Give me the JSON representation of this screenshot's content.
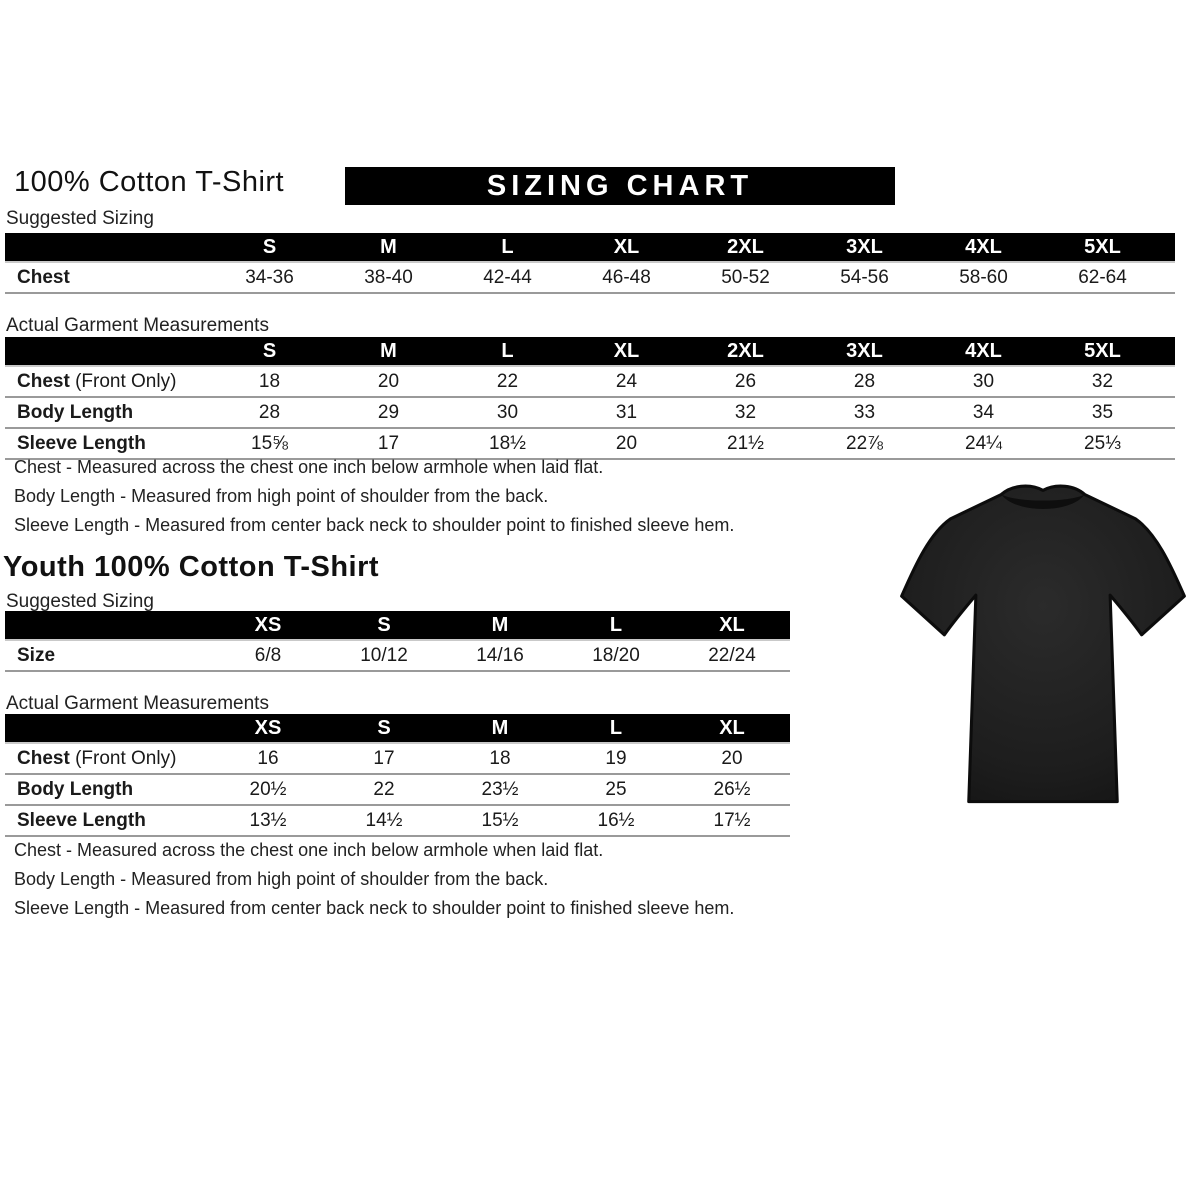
{
  "page": {
    "background": "#ffffff",
    "bar_color": "#000000",
    "line_color": "#9a9a9a"
  },
  "adult": {
    "title": "100% Cotton T-Shirt",
    "banner": "SIZING CHART",
    "suggested": {
      "label": "Suggested Sizing",
      "columns": [
        "S",
        "M",
        "L",
        "XL",
        "2XL",
        "3XL",
        "4XL",
        "5XL"
      ],
      "rows": [
        {
          "label": "Chest",
          "suffix": "",
          "values": [
            "34-36",
            "38-40",
            "42-44",
            "46-48",
            "50-52",
            "54-56",
            "58-60",
            "62-64"
          ]
        }
      ]
    },
    "actual": {
      "label": "Actual Garment Measurements",
      "columns": [
        "S",
        "M",
        "L",
        "XL",
        "2XL",
        "3XL",
        "4XL",
        "5XL"
      ],
      "rows": [
        {
          "label": "Chest",
          "suffix": "(Front Only)",
          "values": [
            "18",
            "20",
            "22",
            "24",
            "26",
            "28",
            "30",
            "32"
          ]
        },
        {
          "label": "Body Length",
          "suffix": "",
          "values": [
            "28",
            "29",
            "30",
            "31",
            "32",
            "33",
            "34",
            "35"
          ]
        },
        {
          "label": "Sleeve Length",
          "suffix": "",
          "values": [
            "15⅝",
            "17",
            "18½",
            "20",
            "21½",
            "22⅞",
            "24¼",
            "25⅓"
          ]
        }
      ]
    },
    "notes": [
      "Chest - Measured across the chest one inch below armhole when laid flat.",
      "Body Length - Measured from high point of shoulder from the back.",
      "Sleeve Length - Measured from center back neck to shoulder point to finished sleeve hem."
    ]
  },
  "youth": {
    "title": "Youth 100% Cotton T-Shirt",
    "suggested": {
      "label": "Suggested Sizing",
      "columns": [
        "XS",
        "S",
        "M",
        "L",
        "XL"
      ],
      "rows": [
        {
          "label": "Size",
          "suffix": "",
          "values": [
            "6/8",
            "10/12",
            "14/16",
            "18/20",
            "22/24"
          ]
        }
      ]
    },
    "actual": {
      "label": "Actual Garment Measurements",
      "columns": [
        "XS",
        "S",
        "M",
        "L",
        "XL"
      ],
      "rows": [
        {
          "label": "Chest",
          "suffix": "(Front Only)",
          "values": [
            "16",
            "17",
            "18",
            "19",
            "20"
          ]
        },
        {
          "label": "Body Length",
          "suffix": "",
          "values": [
            "20½",
            "22",
            "23½",
            "25",
            "26½"
          ]
        },
        {
          "label": "Sleeve Length",
          "suffix": "",
          "values": [
            "13½",
            "14½",
            "15½",
            "16½",
            "17½"
          ]
        }
      ]
    },
    "notes": [
      "Chest - Measured across the chest one inch below armhole when laid flat.",
      "Body Length - Measured from high point of shoulder from the back.",
      "Sleeve Length - Measured from center back neck to shoulder point to finished sleeve hem."
    ]
  },
  "tshirt_image": {
    "description": "black short-sleeve cotton t-shirt, front view",
    "color": "#1d1d1d"
  }
}
